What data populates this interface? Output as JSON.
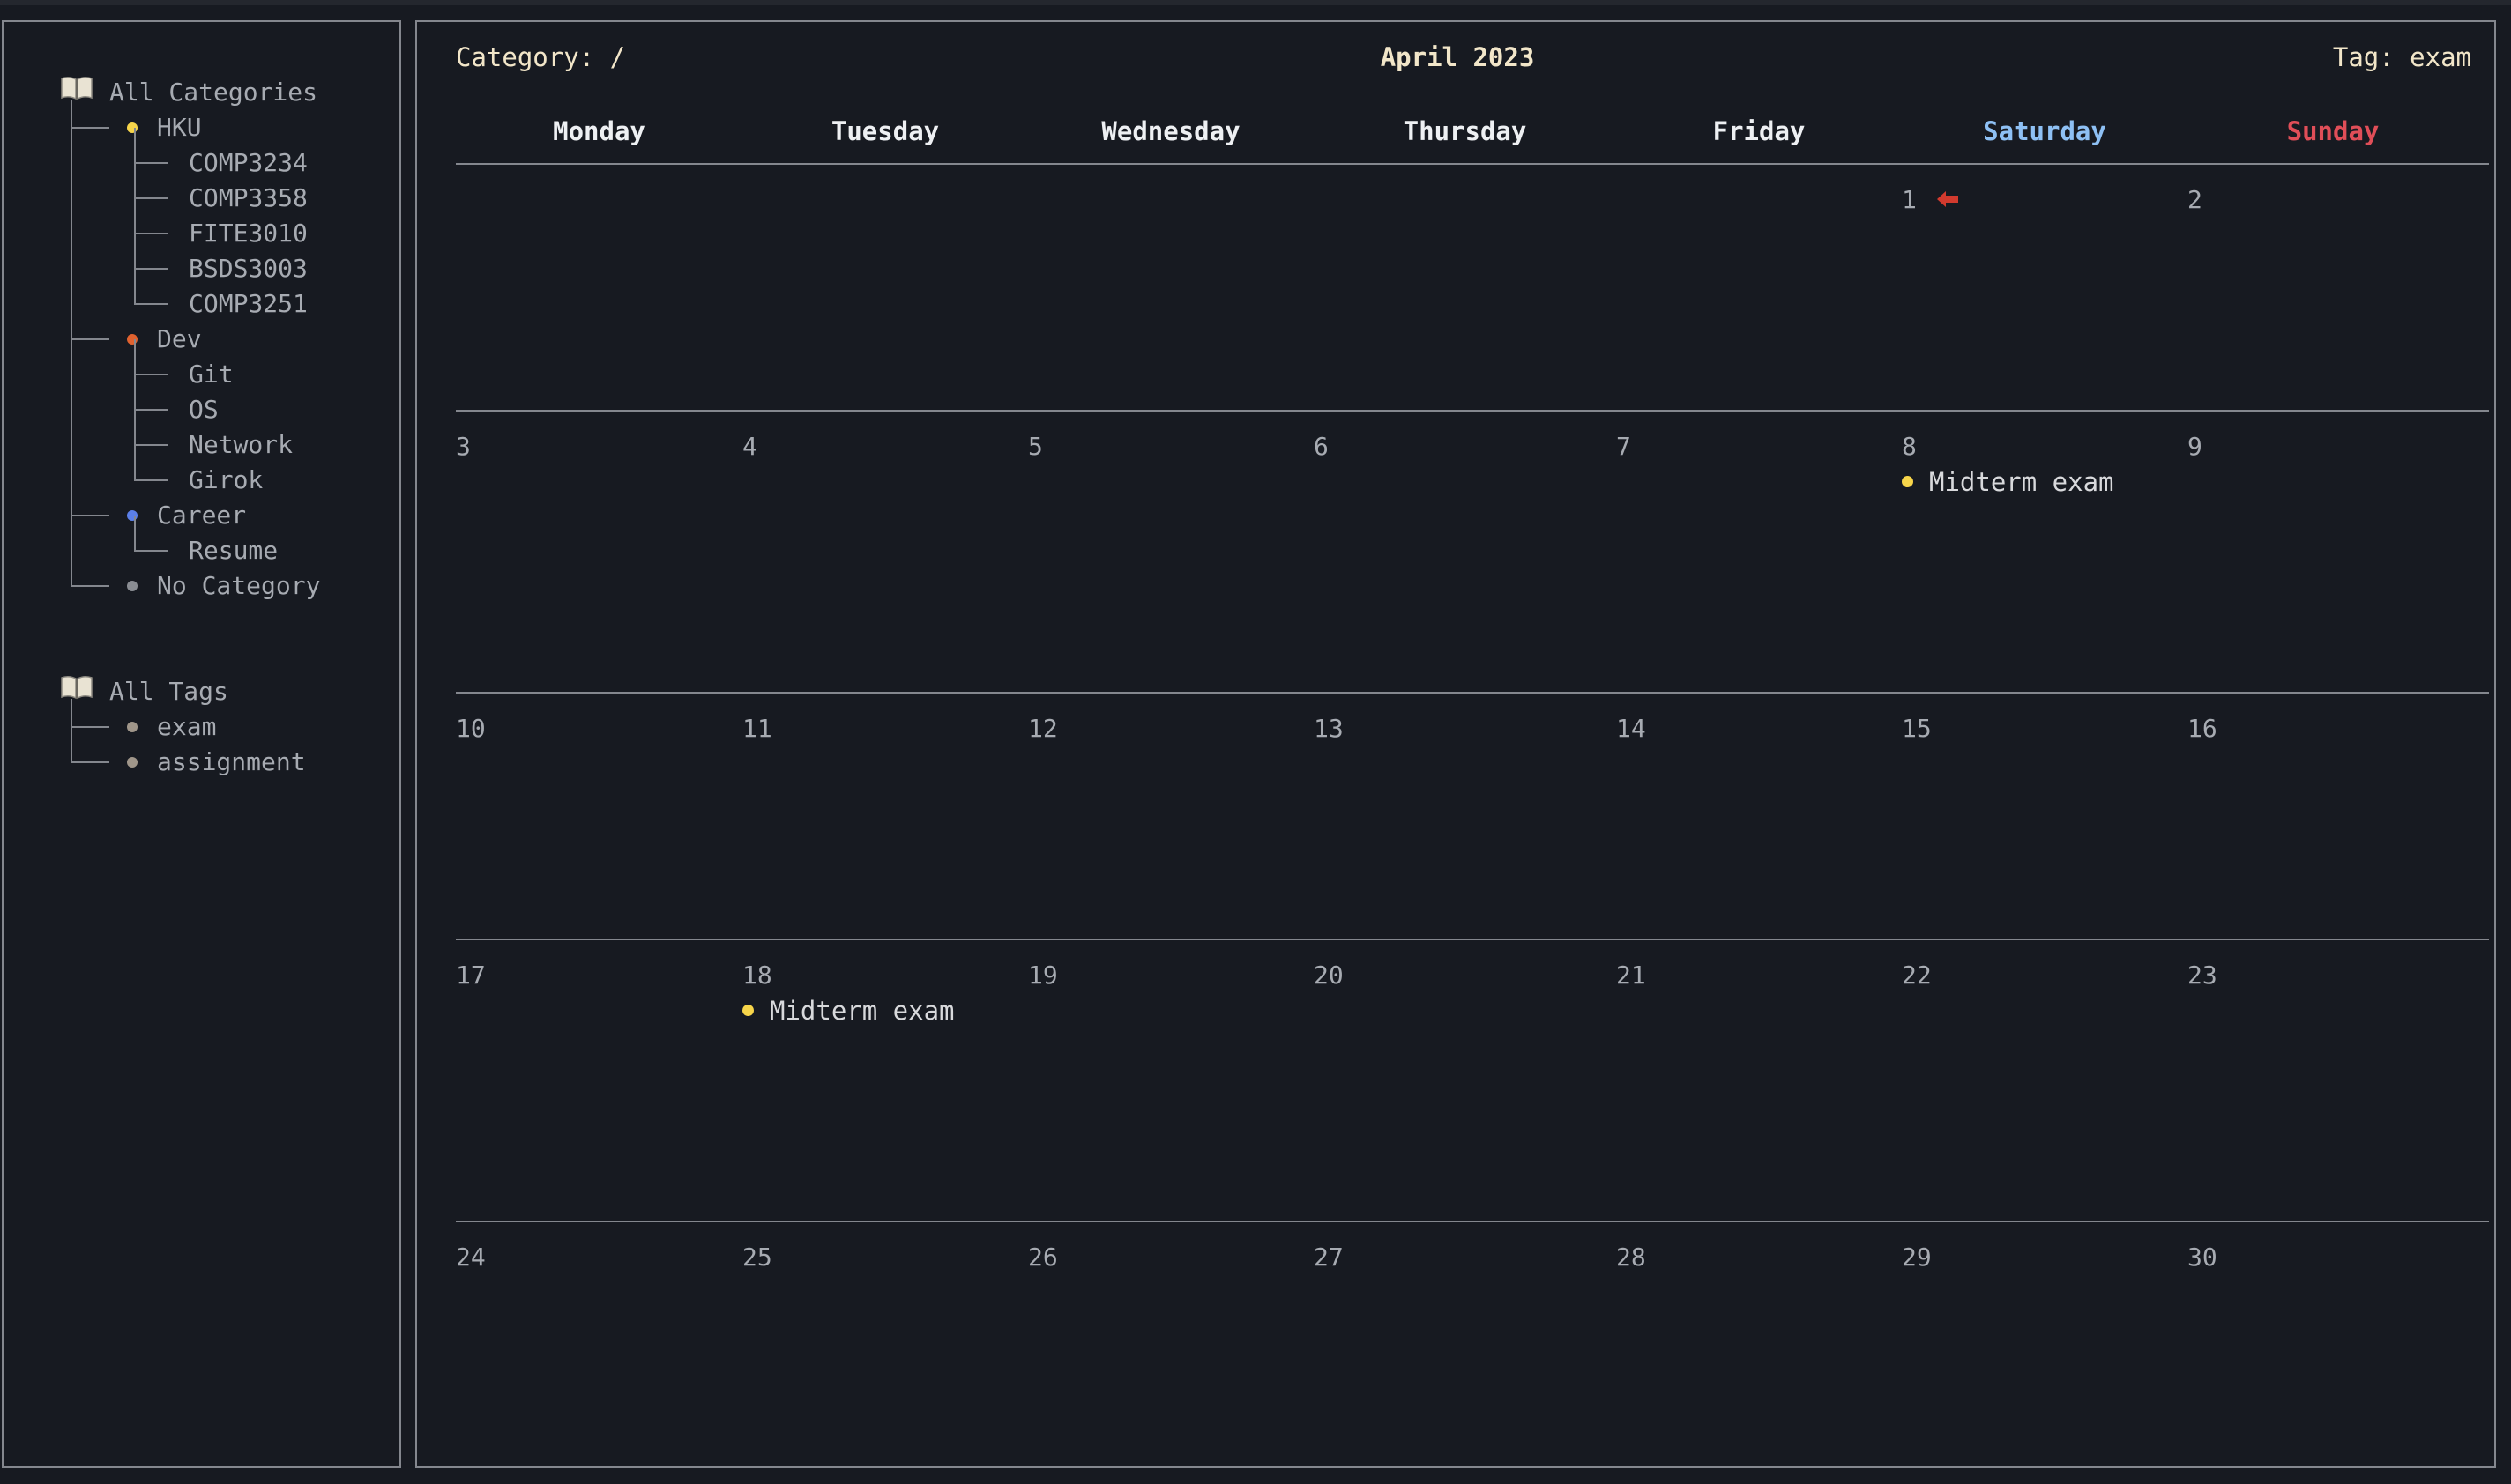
{
  "sidebar": {
    "categories_header": "All Categories",
    "categories": [
      {
        "label": "HKU",
        "color": "#f7d54a",
        "children": [
          "COMP3234",
          "COMP3358",
          "FITE3010",
          "BSDS3003",
          "COMP3251"
        ]
      },
      {
        "label": "Dev",
        "color": "#e0622f",
        "children": [
          "Git",
          "OS",
          "Network",
          "Girok"
        ]
      },
      {
        "label": "Career",
        "color": "#5b7fe8",
        "children": [
          "Resume"
        ]
      },
      {
        "label": "No Category",
        "color": "#8a8d93",
        "children": []
      }
    ],
    "tags_header": "All Tags",
    "tags": [
      {
        "label": "exam",
        "color": "#a0968a"
      },
      {
        "label": "assignment",
        "color": "#a0968a"
      }
    ]
  },
  "header": {
    "category_filter": "Category: /",
    "month_title": "April 2023",
    "tag_filter": "Tag: exam"
  },
  "weekdays": [
    {
      "label": "Monday",
      "color": "#eef0f3"
    },
    {
      "label": "Tuesday",
      "color": "#eef0f3"
    },
    {
      "label": "Wednesday",
      "color": "#eef0f3"
    },
    {
      "label": "Thursday",
      "color": "#eef0f3"
    },
    {
      "label": "Friday",
      "color": "#eef0f3"
    },
    {
      "label": "Saturday",
      "color": "#8ec0f4"
    },
    {
      "label": "Sunday",
      "color": "#e04e58"
    }
  ],
  "weeks": [
    [
      "",
      "",
      "",
      "",
      "",
      "1",
      "2"
    ],
    [
      "3",
      "4",
      "5",
      "6",
      "7",
      "8",
      "9"
    ],
    [
      "10",
      "11",
      "12",
      "13",
      "14",
      "15",
      "16"
    ],
    [
      "17",
      "18",
      "19",
      "20",
      "21",
      "22",
      "23"
    ],
    [
      "24",
      "25",
      "26",
      "27",
      "28",
      "29",
      "30"
    ]
  ],
  "events": [
    {
      "week": 1,
      "weekday": 5,
      "title": "Midterm exam",
      "color": "#f7d54a"
    },
    {
      "week": 3,
      "weekday": 1,
      "title": "Midterm exam",
      "color": "#f7d54a"
    }
  ],
  "today": {
    "week": 0,
    "weekday": 5,
    "icon": "left-arrow-icon",
    "color": "#d23a2e"
  }
}
